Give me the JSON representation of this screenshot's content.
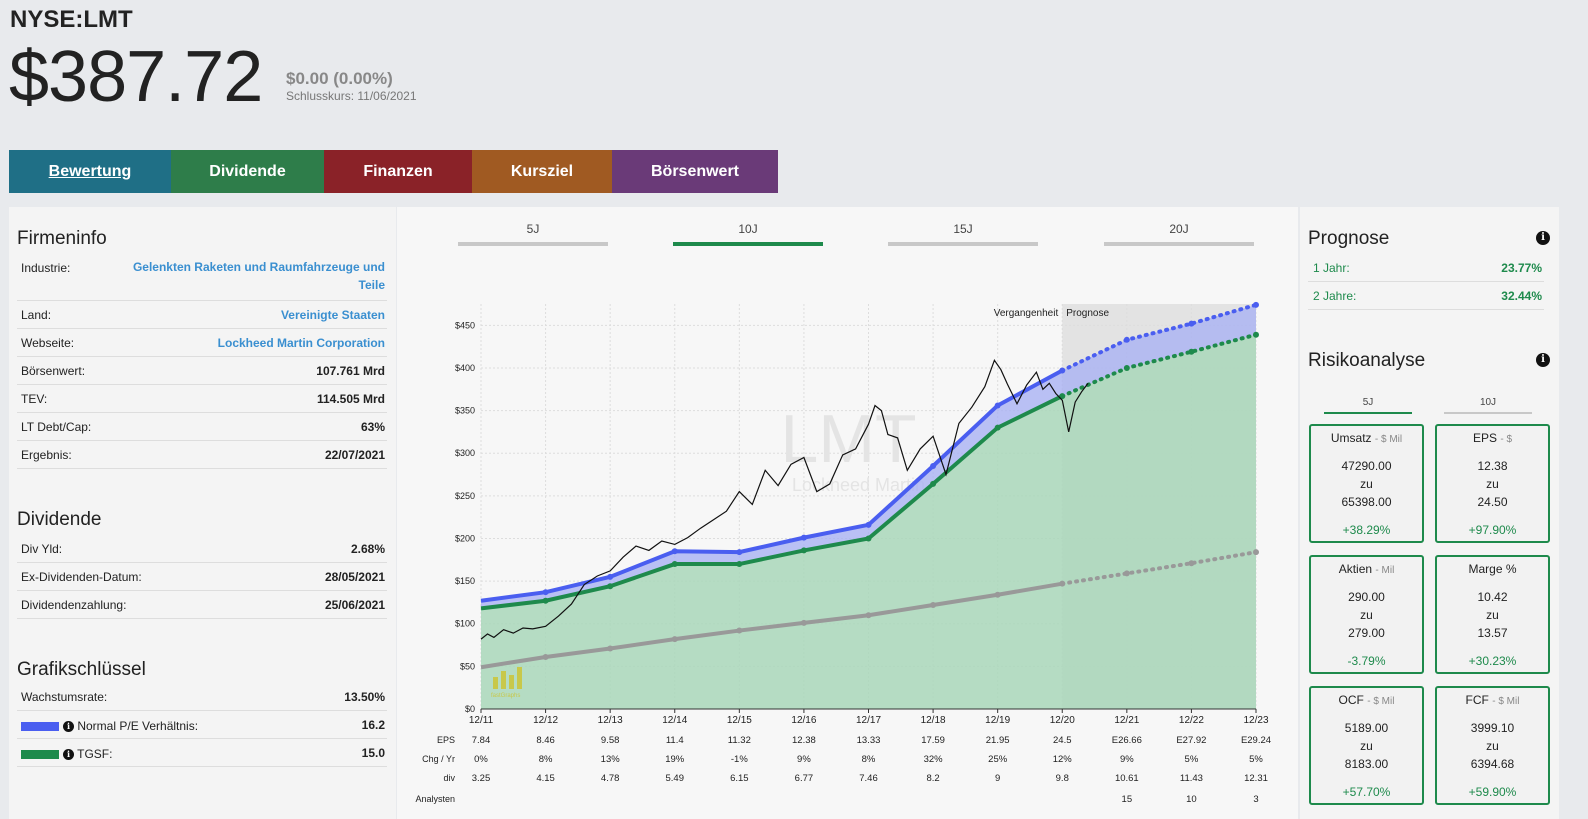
{
  "header": {
    "ticker": "NYSE:LMT",
    "price": "$387.72",
    "change": "$0.00 (0.00%)",
    "close_label": "Schlusskurs: 11/06/2021"
  },
  "tabs": [
    {
      "label": "Bewertung",
      "color": "#1f6f86"
    },
    {
      "label": "Dividende",
      "color": "#2e7d4a"
    },
    {
      "label": "Finanzen",
      "color": "#8a2228"
    },
    {
      "label": "Kursziel",
      "color": "#a05a22"
    },
    {
      "label": "Börsenwert",
      "color": "#6a3a78"
    }
  ],
  "firmeninfo": {
    "title": "Firmeninfo",
    "rows": [
      {
        "k": "Industrie:",
        "v": "Gelenkten Raketen und Raumfahrzeuge und Teile"
      },
      {
        "k": "Land:",
        "v": "Vereinigte Staaten"
      },
      {
        "k": "Webseite:",
        "v": "Lockheed Martin Corporation"
      },
      {
        "k": "Börsenwert:",
        "v": "107.761 Mrd"
      },
      {
        "k": "TEV:",
        "v": "114.505 Mrd"
      },
      {
        "k": "LT Debt/Cap:",
        "v": "63%"
      },
      {
        "k": "Ergebnis:",
        "v": "22/07/2021"
      }
    ]
  },
  "dividende": {
    "title": "Dividende",
    "rows": [
      {
        "k": "Div Yld:",
        "v": "2.68%"
      },
      {
        "k": "Ex-Dividenden-Datum:",
        "v": "28/05/2021"
      },
      {
        "k": "Dividendenzahlung:",
        "v": "25/06/2021"
      }
    ]
  },
  "grafik": {
    "title": "Grafikschlüssel",
    "rows": [
      {
        "k": "Wachstumsrate:",
        "v": "13.50%"
      },
      {
        "k": "Normal P/E Verhältnis:",
        "v": "16.2",
        "swatch": "#4a5ef0"
      },
      {
        "k": "TGSF:",
        "v": "15.0",
        "swatch": "#1e8a4c"
      }
    ]
  },
  "range_tabs": [
    "5J",
    "10J",
    "15J",
    "20J"
  ],
  "active_range": "10J",
  "chart_labels": {
    "past": "Vergangenheit",
    "forecast": "Prognose",
    "watermark": "LMT",
    "watermark_sub": "Lockheed Martin",
    "logo": "fastGraphs"
  },
  "chart_data": {
    "type": "line",
    "x": [
      "12/11",
      "12/12",
      "12/13",
      "12/14",
      "12/15",
      "12/16",
      "12/17",
      "12/18",
      "12/19",
      "12/20",
      "12/21",
      "12/22",
      "12/23"
    ],
    "ylim": [
      0,
      475
    ],
    "yticks": [
      "$0",
      "$50",
      "$100",
      "$150",
      "$200",
      "$250",
      "$300",
      "$350",
      "$400",
      "$450"
    ],
    "ytick_values": [
      0,
      50,
      100,
      150,
      200,
      250,
      300,
      350,
      400,
      450
    ],
    "forecast_start_index": 9,
    "series": [
      {
        "name": "Normal P/E Verhältnis",
        "color": "#4a5ef0",
        "values": [
          127,
          137,
          155,
          185,
          184,
          201,
          216,
          285,
          356,
          397,
          433,
          452,
          474
        ]
      },
      {
        "name": "TGSF",
        "color": "#1e8a4c",
        "values": [
          118,
          127,
          144,
          170,
          170,
          186,
          200,
          264,
          330,
          367,
          400,
          419,
          439
        ]
      },
      {
        "name": "Wachstumsrate",
        "color": "#999999",
        "values": [
          49,
          61,
          71,
          82,
          92,
          101,
          110,
          122,
          134,
          147,
          159,
          171,
          184
        ]
      }
    ],
    "price_series": {
      "color": "#111111",
      "x": [
        0,
        0.1,
        0.2,
        0.35,
        0.5,
        0.65,
        0.8,
        1.0,
        1.2,
        1.4,
        1.6,
        1.8,
        2.0,
        2.2,
        2.4,
        2.6,
        2.8,
        3.0,
        3.2,
        3.4,
        3.6,
        3.8,
        4.0,
        4.2,
        4.4,
        4.6,
        4.8,
        5.0,
        5.2,
        5.4,
        5.6,
        5.8,
        6.0,
        6.1,
        6.2,
        6.3,
        6.45,
        6.6,
        6.8,
        7.0,
        7.2,
        7.4,
        7.6,
        7.8,
        7.95,
        8.05,
        8.15,
        8.3,
        8.45,
        8.6,
        8.7,
        8.8,
        8.9,
        9.0,
        9.1,
        9.2,
        9.3,
        9.4
      ],
      "y": [
        82,
        88,
        84,
        93,
        89,
        95,
        94,
        97,
        109,
        123,
        146,
        156,
        162,
        178,
        191,
        186,
        197,
        193,
        201,
        212,
        222,
        232,
        255,
        240,
        280,
        262,
        287,
        295,
        255,
        264,
        298,
        305,
        334,
        356,
        350,
        322,
        318,
        280,
        305,
        320,
        275,
        335,
        354,
        378,
        409,
        398,
        381,
        358,
        380,
        395,
        375,
        382,
        370,
        362,
        325,
        360,
        372,
        382
      ]
    },
    "table": {
      "rows": [
        {
          "label": "EPS",
          "values": [
            "7.84",
            "8.46",
            "9.58",
            "11.4",
            "11.32",
            "12.38",
            "13.33",
            "17.59",
            "21.95",
            "24.5",
            "E26.66",
            "E27.92",
            "E29.24"
          ]
        },
        {
          "label": "Chg / Yr",
          "values": [
            "0%",
            "8%",
            "13%",
            "19%",
            "-1%",
            "9%",
            "8%",
            "32%",
            "25%",
            "12%",
            "9%",
            "5%",
            "5%"
          ]
        },
        {
          "label": "div",
          "values": [
            "3.25",
            "4.15",
            "4.78",
            "5.49",
            "6.15",
            "6.77",
            "7.46",
            "8.2",
            "9",
            "9.8",
            "10.61",
            "11.43",
            "12.31"
          ]
        },
        {
          "label": "Analysten",
          "values": [
            "",
            "",
            "",
            "",
            "",
            "",
            "",
            "",
            "",
            "",
            "15",
            "10",
            "3"
          ]
        }
      ]
    }
  },
  "prognose": {
    "title": "Prognose",
    "rows": [
      {
        "k": "1 Jahr:",
        "v": "23.77%"
      },
      {
        "k": "2 Jahre:",
        "v": "32.44%"
      }
    ]
  },
  "risiko": {
    "title": "Risikoanalyse",
    "tabs": [
      "5J",
      "10J"
    ],
    "boxes": [
      {
        "title": "Umsatz",
        "unit": "- $ Mil",
        "a": "47290.00",
        "zu": "zu",
        "b": "65398.00",
        "pct": "+38.29%"
      },
      {
        "title": "EPS",
        "unit": "- $",
        "a": "12.38",
        "zu": "zu",
        "b": "24.50",
        "pct": "+97.90%"
      },
      {
        "title": "Aktien",
        "unit": "- Mil",
        "a": "290.00",
        "zu": "zu",
        "b": "279.00",
        "pct": "-3.79%"
      },
      {
        "title": "Marge %",
        "unit": "",
        "a": "10.42",
        "zu": "zu",
        "b": "13.57",
        "pct": "+30.23%"
      },
      {
        "title": "OCF",
        "unit": "- $ Mil",
        "a": "5189.00",
        "zu": "zu",
        "b": "8183.00",
        "pct": "+57.70%"
      },
      {
        "title": "FCF",
        "unit": "- $ Mil",
        "a": "3999.10",
        "zu": "zu",
        "b": "6394.68",
        "pct": "+59.90%"
      }
    ]
  }
}
